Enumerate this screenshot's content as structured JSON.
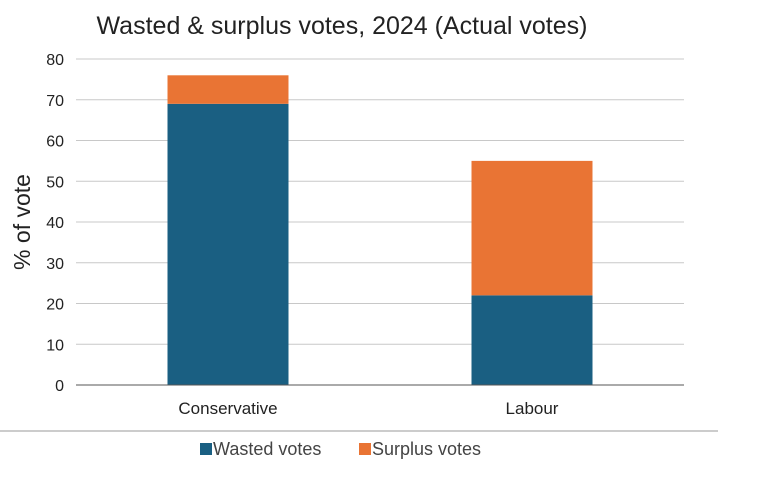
{
  "chart_data": {
    "type": "bar",
    "stacked": true,
    "title": "Wasted & surplus votes, 2024 (Actual votes)",
    "xlabel": "",
    "ylabel": "% of vote",
    "categories": [
      "Conservative",
      "Labour"
    ],
    "series": [
      {
        "name": "Wasted votes",
        "color": "#1a5f82",
        "values": [
          69,
          22
        ]
      },
      {
        "name": "Surplus votes",
        "color": "#e97434",
        "values": [
          7,
          33
        ]
      }
    ],
    "ylim": [
      0,
      80
    ],
    "yticks": [
      0,
      10,
      20,
      30,
      40,
      50,
      60,
      70,
      80
    ],
    "grid": true,
    "legend": "bottom"
  }
}
